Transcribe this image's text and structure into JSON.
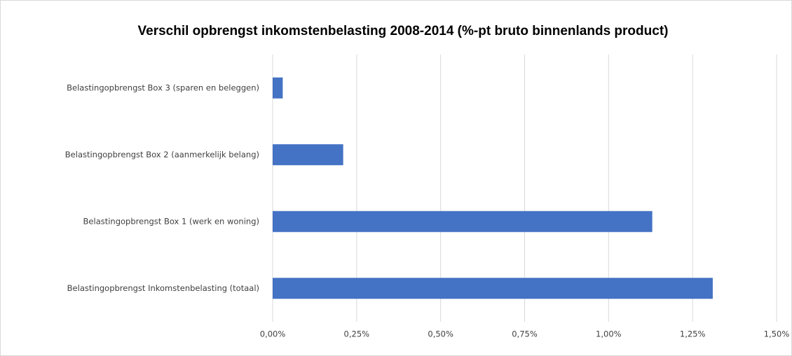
{
  "chart_data": {
    "type": "bar",
    "orientation": "horizontal",
    "title": "Verschil opbrengst inkomstenbelasting 2008-2014 (%-pt bruto binnenlands product)",
    "categories": [
      "Belastingopbrengst Box 3 (sparen en beleggen)",
      "Belastingopbrengst Box 2 (aanmerkelijk belang)",
      "Belastingopbrengst Box 1 (werk en woning)",
      "Belastingopbrengst Inkomstenbelasting (totaal)"
    ],
    "values": [
      0.03,
      0.21,
      1.13,
      1.31
    ],
    "color": "#4472c4",
    "xlim": [
      0,
      1.5
    ],
    "xticks": [
      {
        "value": 0,
        "label": "0,00%"
      },
      {
        "value": 0.25,
        "label": "0,25%"
      },
      {
        "value": 0.5,
        "label": "0,50%"
      },
      {
        "value": 0.75,
        "label": "0,75%"
      },
      {
        "value": 1,
        "label": "1,00%"
      },
      {
        "value": 1.25,
        "label": "1,25%"
      },
      {
        "value": 1.5,
        "label": "1,50%"
      }
    ],
    "grid": true
  }
}
